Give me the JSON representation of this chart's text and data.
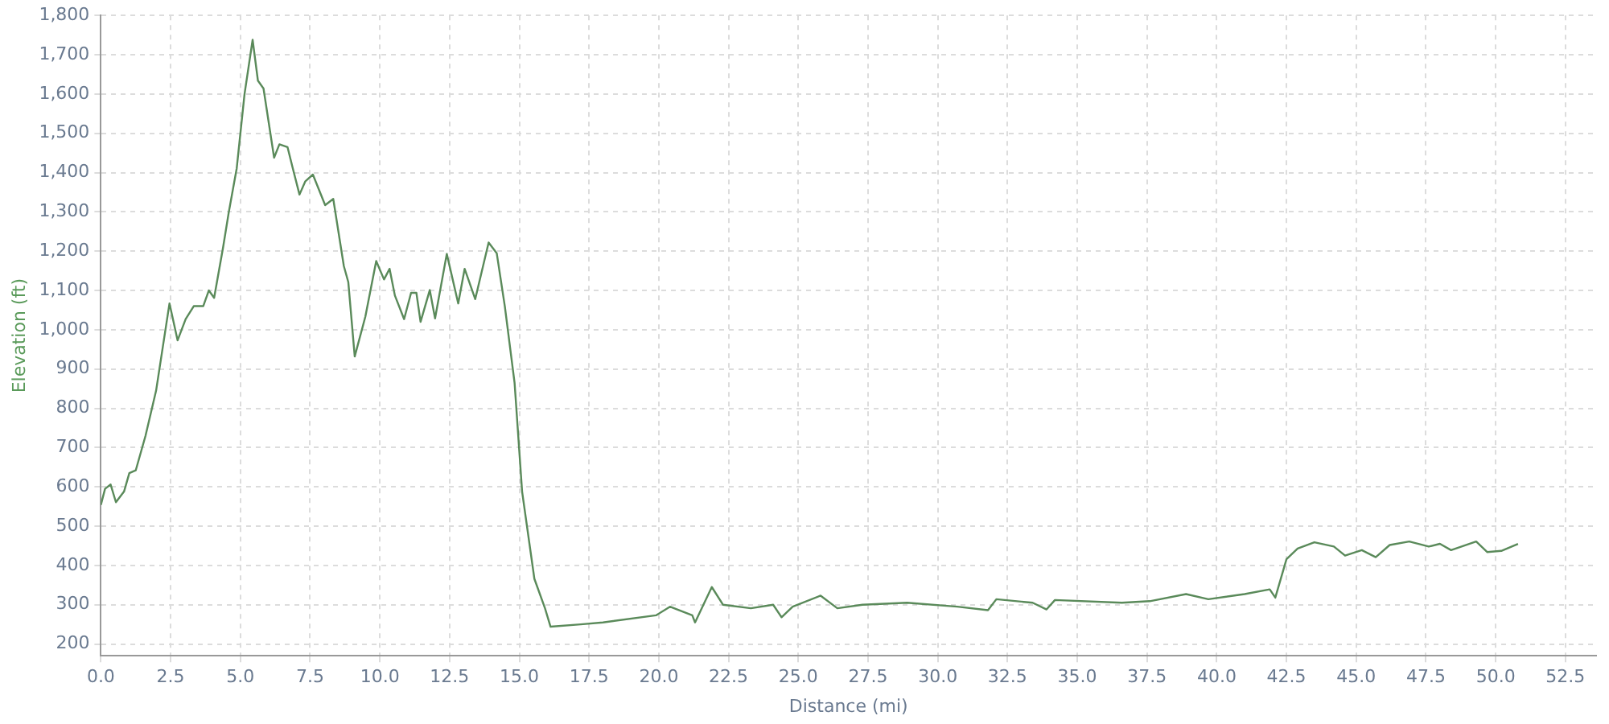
{
  "chart_data": {
    "type": "line",
    "xlabel": "Distance (mi)",
    "ylabel": "Elevation (ft)",
    "xlim": [
      0,
      53.6
    ],
    "ylim": [
      170,
      1800
    ],
    "xticks": [
      {
        "value": 0,
        "label": "0.0"
      },
      {
        "value": 2.5,
        "label": "2.5"
      },
      {
        "value": 5,
        "label": "5.0"
      },
      {
        "value": 7.5,
        "label": "7.5"
      },
      {
        "value": 10,
        "label": "10.0"
      },
      {
        "value": 12.5,
        "label": "12.5"
      },
      {
        "value": 15,
        "label": "15.0"
      },
      {
        "value": 17.5,
        "label": "17.5"
      },
      {
        "value": 20,
        "label": "20.0"
      },
      {
        "value": 22.5,
        "label": "22.5"
      },
      {
        "value": 25,
        "label": "25.0"
      },
      {
        "value": 27.5,
        "label": "27.5"
      },
      {
        "value": 30,
        "label": "30.0"
      },
      {
        "value": 32.5,
        "label": "32.5"
      },
      {
        "value": 35,
        "label": "35.0"
      },
      {
        "value": 37.5,
        "label": "37.5"
      },
      {
        "value": 40,
        "label": "40.0"
      },
      {
        "value": 42.5,
        "label": "42.5"
      },
      {
        "value": 45,
        "label": "45.0"
      },
      {
        "value": 47.5,
        "label": "47.5"
      },
      {
        "value": 50,
        "label": "50.0"
      },
      {
        "value": 52.5,
        "label": "52.5"
      }
    ],
    "yticks": [
      200,
      300,
      400,
      500,
      600,
      700,
      800,
      900,
      {
        "value": 1000,
        "label": "1,000"
      },
      {
        "value": 1100,
        "label": "1,100"
      },
      {
        "value": 1200,
        "label": "1,200"
      },
      {
        "value": 1300,
        "label": "1,300"
      },
      {
        "value": 1400,
        "label": "1,400"
      },
      {
        "value": 1500,
        "label": "1,500"
      },
      {
        "value": 1600,
        "label": "1,600"
      },
      {
        "value": 1700,
        "label": "1,700"
      },
      {
        "value": 1800,
        "label": "1,800"
      }
    ],
    "grid": true,
    "legend": false,
    "marker": "none",
    "line_style": "solid",
    "series": [
      {
        "color": "#5a8a5a",
        "x": [
          0,
          0.15,
          0.35,
          0.54,
          0.83,
          1.02,
          1.25,
          1.6,
          1.98,
          2.46,
          2.75,
          3.04,
          3.33,
          3.67,
          3.87,
          4.06,
          4.38,
          4.58,
          4.87,
          5.15,
          5.44,
          5.63,
          5.83,
          6.02,
          6.21,
          6.4,
          6.69,
          6.88,
          7.12,
          7.33,
          7.6,
          8.04,
          8.33,
          8.71,
          8.87,
          9.1,
          9.48,
          9.87,
          10.15,
          10.35,
          10.54,
          10.87,
          11.12,
          11.31,
          11.46,
          11.79,
          11.98,
          12.4,
          12.81,
          13.04,
          13.42,
          13.9,
          14.19,
          14.48,
          14.83,
          15.1,
          15.54,
          15.92,
          16.12,
          17.2,
          18.0,
          19.9,
          20.4,
          21.2,
          21.3,
          21.9,
          22.3,
          23.3,
          24.1,
          24.4,
          24.8,
          25.8,
          26.4,
          27.3,
          28.9,
          30.7,
          31.8,
          32.1,
          33.4,
          33.9,
          34.2,
          36.6,
          37.6,
          38.9,
          39.7,
          41.0,
          41.9,
          42.1,
          42.5,
          42.9,
          43.5,
          44.2,
          44.6,
          45.2,
          45.7,
          46.2,
          46.9,
          47.6,
          48.0,
          48.4,
          49.3,
          49.7,
          50.2,
          50.8
        ],
        "values": [
          554,
          595,
          606,
          561,
          588,
          635,
          642,
          730,
          845,
          1067,
          973,
          1027,
          1060,
          1060,
          1100,
          1081,
          1209,
          1297,
          1411,
          1600,
          1738,
          1634,
          1614,
          1526,
          1438,
          1472,
          1465,
          1411,
          1344,
          1378,
          1395,
          1317,
          1333,
          1162,
          1121,
          932,
          1033,
          1175,
          1128,
          1155,
          1087,
          1027,
          1094,
          1094,
          1020,
          1101,
          1029,
          1193,
          1067,
          1155,
          1078,
          1222,
          1195,
          1060,
          865,
          588,
          366,
          291,
          244,
          250,
          255,
          273,
          295,
          273,
          255,
          345,
          300,
          291,
          300,
          268,
          295,
          323,
          291,
          300,
          305,
          295,
          286,
          314,
          305,
          288,
          312,
          305,
          309,
          327,
          314,
          327,
          339,
          318,
          416,
          443,
          459,
          448,
          425,
          439,
          421,
          452,
          461,
          448,
          455,
          439,
          461,
          434,
          437,
          455
        ]
      }
    ]
  }
}
